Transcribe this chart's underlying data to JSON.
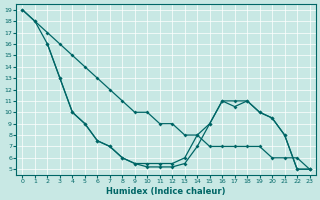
{
  "xlabel": "Humidex (Indice chaleur)",
  "bg_color": "#c8e8e4",
  "line_color": "#006666",
  "xlim": [
    -0.5,
    23.5
  ],
  "ylim": [
    4.5,
    19.5
  ],
  "xticks": [
    0,
    1,
    2,
    3,
    4,
    5,
    6,
    7,
    8,
    9,
    10,
    11,
    12,
    13,
    14,
    15,
    16,
    17,
    18,
    19,
    20,
    21,
    22,
    23
  ],
  "yticks": [
    5,
    6,
    7,
    8,
    9,
    10,
    11,
    12,
    13,
    14,
    15,
    16,
    17,
    18,
    19
  ],
  "line1_x": [
    0,
    1,
    2,
    3,
    4,
    5,
    6,
    7,
    8,
    9,
    10,
    11,
    12,
    13,
    14,
    15,
    16,
    17,
    18,
    19,
    20,
    21,
    22,
    23
  ],
  "line1_y": [
    19,
    18,
    17,
    16,
    15,
    14,
    13,
    12,
    11,
    10,
    10,
    9,
    9,
    8,
    8,
    7,
    7,
    7,
    7,
    7,
    6,
    6,
    6,
    5
  ],
  "line2_x": [
    0,
    1,
    2,
    3,
    4,
    5,
    6,
    7,
    8,
    9,
    10,
    11,
    12,
    13,
    14,
    15,
    16,
    17,
    18,
    19,
    20,
    21,
    22,
    23
  ],
  "line2_y": [
    19,
    18,
    16,
    13,
    10,
    9,
    7.5,
    7,
    6,
    5.5,
    5.5,
    5.5,
    5.5,
    6,
    8,
    9,
    11,
    11,
    11,
    10,
    9.5,
    8,
    5,
    5
  ],
  "line3_x": [
    2,
    3,
    4,
    5,
    6,
    7,
    8,
    9,
    10,
    11,
    12,
    13,
    14,
    15,
    16,
    17,
    18,
    19,
    20,
    21,
    22,
    23
  ],
  "line3_y": [
    16,
    13,
    10,
    9,
    7.5,
    7,
    6,
    5.5,
    5.2,
    5.2,
    5.2,
    5.5,
    7,
    9,
    11,
    10.5,
    11,
    10,
    9.5,
    8,
    5,
    5
  ]
}
